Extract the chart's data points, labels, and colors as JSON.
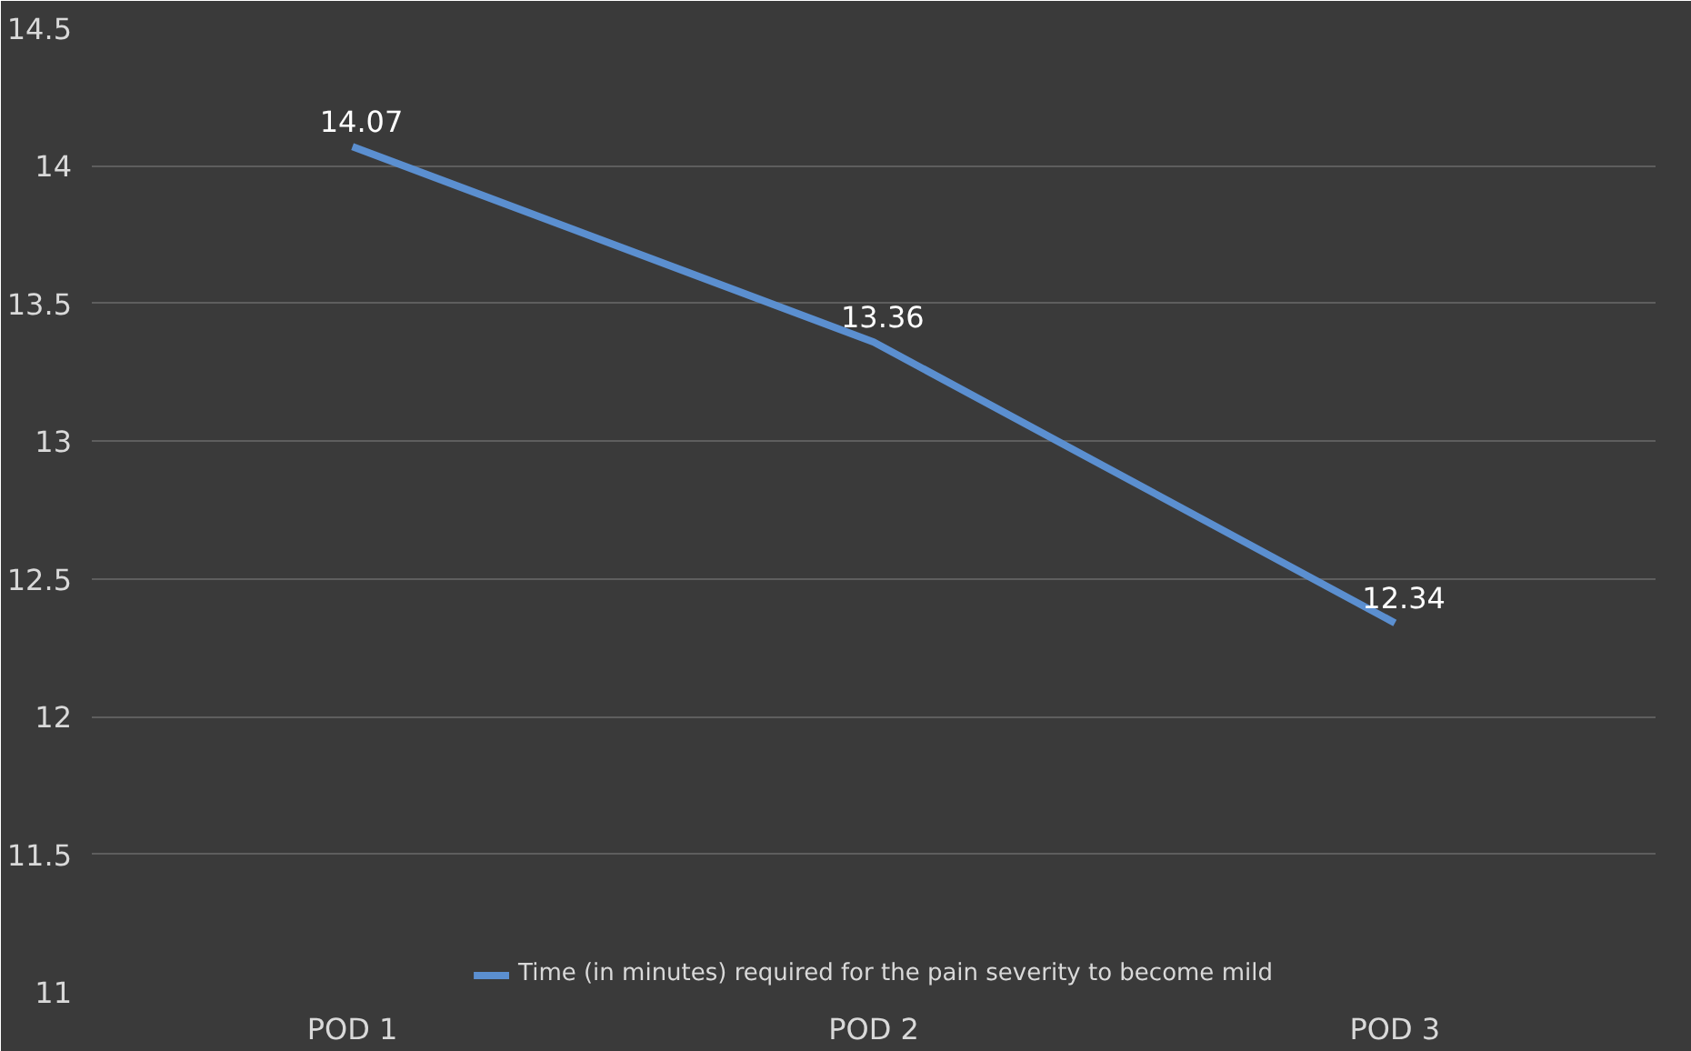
{
  "chart_data": {
    "type": "line",
    "categories": [
      "POD 1",
      "POD 2",
      "POD 3"
    ],
    "series": [
      {
        "name": "Time (in minutes) required for the pain severity to become mild",
        "color": "#5b8fd0",
        "values": [
          14.07,
          13.36,
          12.34
        ]
      }
    ],
    "ylim": [
      11,
      14.5
    ],
    "yticks": [
      11,
      11.5,
      12,
      12.5,
      13,
      13.5,
      14,
      14.5
    ],
    "grid": "y",
    "legend": "bottom",
    "data_labels": true,
    "marker": "none",
    "line_style": "solid"
  }
}
